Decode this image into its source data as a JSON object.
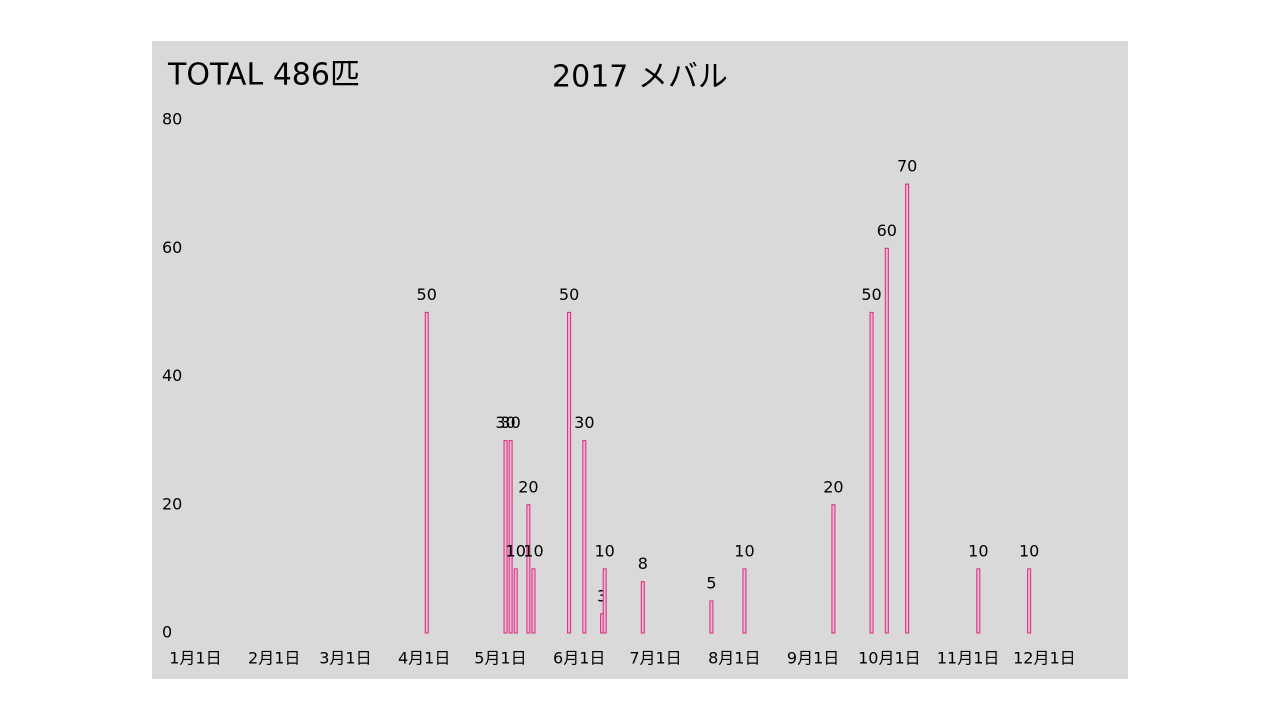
{
  "chart_data": {
    "type": "bar",
    "title": "2017 メバル",
    "annotation": "TOTAL 486匹",
    "x": [
      92,
      123,
      125,
      127,
      132,
      134,
      148,
      154,
      161,
      162,
      177,
      204,
      217,
      252,
      267,
      273,
      281,
      309,
      329
    ],
    "values": [
      50,
      30,
      30,
      10,
      20,
      10,
      50,
      30,
      3,
      10,
      8,
      5,
      10,
      20,
      50,
      60,
      70,
      10,
      10
    ],
    "color": "#d6287e",
    "xlim": [
      -9,
      349
    ],
    "xticks": [
      {
        "value": 1,
        "label": "1月1日"
      },
      {
        "value": 32,
        "label": "2月1日"
      },
      {
        "value": 60,
        "label": "3月1日"
      },
      {
        "value": 91,
        "label": "4月1日"
      },
      {
        "value": 121,
        "label": "5月1日"
      },
      {
        "value": 152,
        "label": "6月1日"
      },
      {
        "value": 182,
        "label": "7月1日"
      },
      {
        "value": 213,
        "label": "8月1日"
      },
      {
        "value": 244,
        "label": "9月1日"
      },
      {
        "value": 274,
        "label": "10月1日"
      },
      {
        "value": 305,
        "label": "11月1日"
      },
      {
        "value": 335,
        "label": "12月1日"
      }
    ],
    "ylim": [
      0,
      80
    ],
    "yticks": [
      0,
      20,
      40,
      60,
      80
    ],
    "grid": false
  }
}
